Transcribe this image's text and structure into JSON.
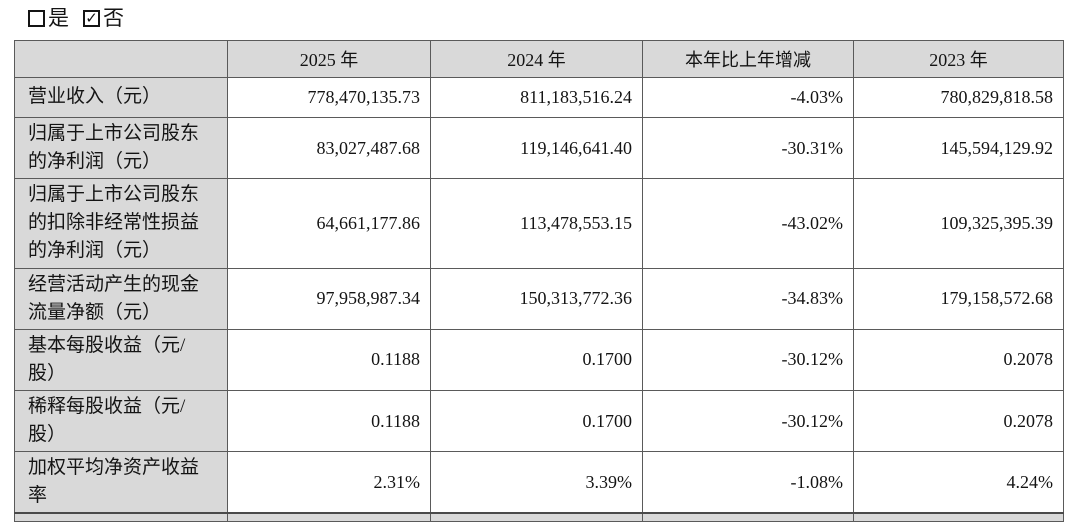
{
  "checkline": {
    "yes_label": "是",
    "no_label": "否",
    "yes_checked": false,
    "no_checked": true,
    "check_glyph": "✓"
  },
  "table": {
    "columns": [
      "",
      "2025 年",
      "2024 年",
      "本年比上年增减",
      "2023 年"
    ],
    "rows": [
      {
        "label": "营业收入（元）",
        "values": [
          "778,470,135.73",
          "811,183,516.24",
          "-4.03%",
          "780,829,818.58"
        ]
      },
      {
        "label": "归属于上市公司股东\n的净利润（元）",
        "values": [
          "83,027,487.68",
          "119,146,641.40",
          "-30.31%",
          "145,594,129.92"
        ]
      },
      {
        "label": "归属于上市公司股东\n的扣除非经常性损益\n的净利润（元）",
        "values": [
          "64,661,177.86",
          "113,478,553.15",
          "-43.02%",
          "109,325,395.39"
        ]
      },
      {
        "label": "经营活动产生的现金\n流量净额（元）",
        "values": [
          "97,958,987.34",
          "150,313,772.36",
          "-34.83%",
          "179,158,572.68"
        ]
      },
      {
        "label": "基本每股收益（元/\n股）",
        "values": [
          "0.1188",
          "0.1700",
          "-30.12%",
          "0.2078"
        ]
      },
      {
        "label": "稀释每股收益（元/\n股）",
        "values": [
          "0.1188",
          "0.1700",
          "-30.12%",
          "0.2078"
        ]
      },
      {
        "label": "加权平均净资产收益\n率",
        "values": [
          "2.31%",
          "3.39%",
          "-1.08%",
          "4.24%"
        ]
      }
    ]
  },
  "colors": {
    "header_bg": "#d9d9d9",
    "grid_border": "#5a5a5a",
    "text": "#141414"
  }
}
